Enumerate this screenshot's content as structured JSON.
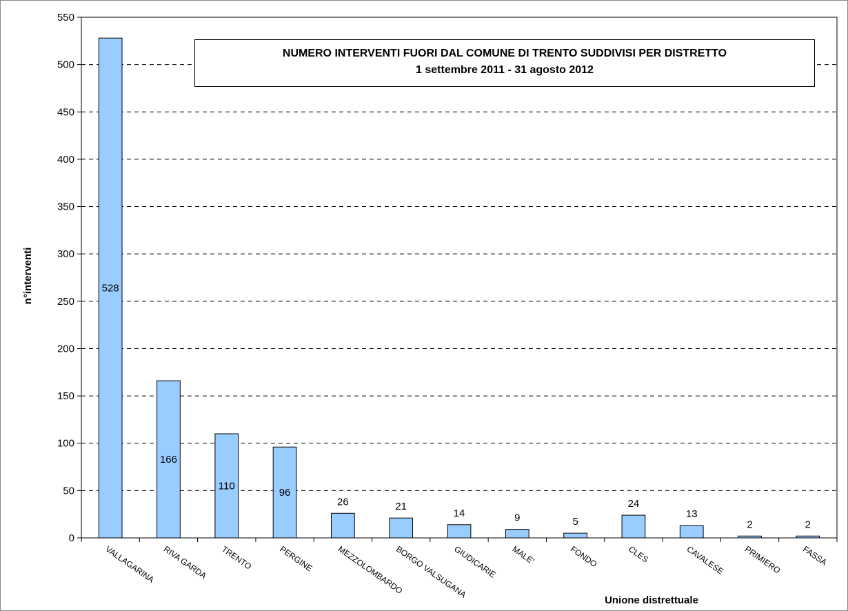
{
  "chart_data": {
    "type": "bar",
    "title": "NUMERO INTERVENTI FUORI DAL COMUNE DI TRENTO SUDDIVISI PER DISTRETTO",
    "subtitle": "1 settembre 2011 - 31 agosto 2012",
    "xlabel": "Unione distrettuale",
    "ylabel": "n°interventi",
    "ylim": [
      0,
      550
    ],
    "yticks": [
      0,
      50,
      100,
      150,
      200,
      250,
      300,
      350,
      400,
      450,
      500,
      550
    ],
    "grid": true,
    "legend": "none",
    "categories": [
      "VALLAGARINA",
      "RIVA GARDA",
      "TRENTO",
      "PERGINE",
      "MEZZOLOMBARDO",
      "BORGO VALSUGANA",
      "GIUDICARIE",
      "MALE'",
      "FONDO",
      "CLES",
      "CAVALESE",
      "PRIMIERO",
      "FASSA"
    ],
    "values": [
      528,
      166,
      110,
      96,
      26,
      21,
      14,
      9,
      5,
      24,
      13,
      2,
      2
    ],
    "label_inside_bar": [
      true,
      true,
      true,
      true,
      false,
      false,
      false,
      false,
      false,
      false,
      false,
      false,
      false
    ],
    "colors": {
      "bar_fill": "#99ccff",
      "bar_stroke": "#000000",
      "grid": "#000000"
    }
  }
}
